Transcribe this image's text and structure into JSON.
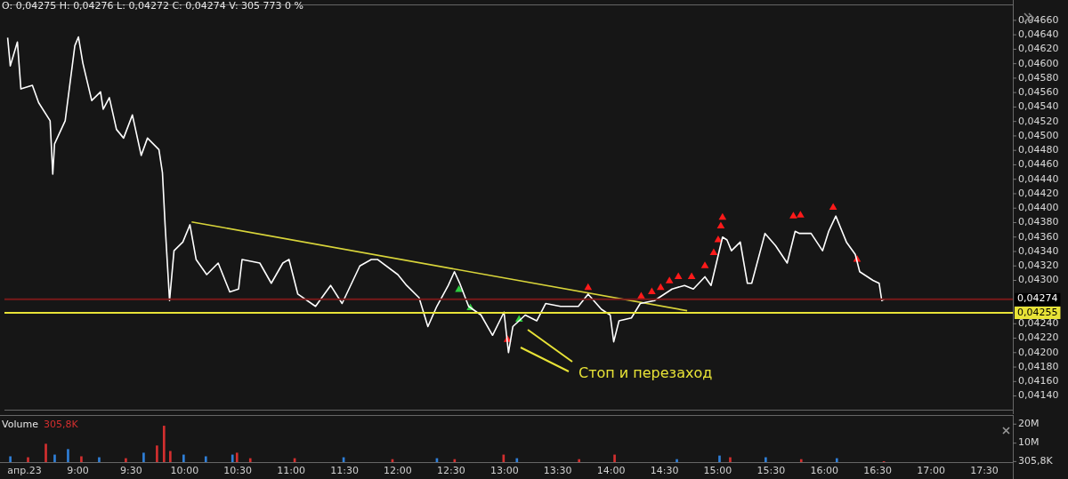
{
  "chart_data": [
    {
      "type": "line",
      "title": "O: 0,04275  H: 0,04276  L: 0,04272  C: 0,04274  V: 305 773  0 %",
      "xlim": [
        8.27,
        17.767
      ],
      "ylim": [
        0.04121,
        0.04682
      ],
      "yticks": [
        {
          "value": 0.0414,
          "label": "0,04140"
        },
        {
          "value": 0.0416,
          "label": "0,04160"
        },
        {
          "value": 0.0418,
          "label": "0,04180"
        },
        {
          "value": 0.042,
          "label": "0,04200"
        },
        {
          "value": 0.0422,
          "label": "0,04220"
        },
        {
          "value": 0.0424,
          "label": "0,04240"
        },
        {
          "value": 0.043,
          "label": "0,04300"
        },
        {
          "value": 0.0432,
          "label": "0,04320"
        },
        {
          "value": 0.0434,
          "label": "0,04340"
        },
        {
          "value": 0.0436,
          "label": "0,04360"
        },
        {
          "value": 0.0438,
          "label": "0,04380"
        },
        {
          "value": 0.044,
          "label": "0,04400"
        },
        {
          "value": 0.0442,
          "label": "0,04420"
        },
        {
          "value": 0.0444,
          "label": "0,04440"
        },
        {
          "value": 0.0446,
          "label": "0,04460"
        },
        {
          "value": 0.0448,
          "label": "0,04480"
        },
        {
          "value": 0.045,
          "label": "0,04500"
        },
        {
          "value": 0.0452,
          "label": "0,04520"
        },
        {
          "value": 0.0454,
          "label": "0,04540"
        },
        {
          "value": 0.0456,
          "label": "0,04560"
        },
        {
          "value": 0.0458,
          "label": "0,04580"
        },
        {
          "value": 0.046,
          "label": "0,04600"
        },
        {
          "value": 0.0462,
          "label": "0,04620"
        },
        {
          "value": 0.0464,
          "label": "0,04640"
        },
        {
          "value": 0.0466,
          "label": "0,04660"
        }
      ],
      "tick_labels": "y",
      "series": [
        {
          "type": "line",
          "color": "#ffffff",
          "marker": "none",
          "x": [
            8.3,
            8.325,
            8.392,
            8.425,
            8.533,
            8.592,
            8.7,
            8.725,
            8.742,
            8.842,
            8.933,
            8.967,
            9.008,
            9.092,
            9.175,
            9.2,
            9.258,
            9.325,
            9.392,
            9.475,
            9.558,
            9.617,
            9.725,
            9.758,
            9.783,
            9.825,
            9.867,
            9.95,
            10.017,
            10.075,
            10.175,
            10.283,
            10.392,
            10.475,
            10.508,
            10.675,
            10.783,
            10.892,
            10.95,
            11.033,
            11.2,
            11.342,
            11.45,
            11.617,
            11.725,
            11.783,
            11.975,
            12.058,
            12.175,
            12.258,
            12.342,
            12.45,
            12.508,
            12.558,
            12.642,
            12.758,
            12.867,
            12.975,
            13.017,
            13.058,
            13.175,
            13.283,
            13.367,
            13.508,
            13.675,
            13.767,
            13.892,
            13.975,
            14.008,
            14.058,
            14.175,
            14.258,
            14.392,
            14.558,
            14.675,
            14.758,
            14.867,
            14.925,
            14.975,
            15.033,
            15.075,
            15.117,
            15.2,
            15.267,
            15.308,
            15.433,
            15.533,
            15.642,
            15.717,
            15.758,
            15.867,
            15.975,
            16.033,
            16.1,
            16.2,
            16.283,
            16.325,
            16.45,
            16.508,
            16.533,
            16.558
          ],
          "values": [
            0.04636,
            0.04597,
            0.0463,
            0.04565,
            0.0457,
            0.04546,
            0.04521,
            0.04447,
            0.04489,
            0.04521,
            0.04625,
            0.04637,
            0.04601,
            0.04549,
            0.04561,
            0.04537,
            0.04553,
            0.04509,
            0.04497,
            0.04529,
            0.04473,
            0.04497,
            0.04481,
            0.04449,
            0.04377,
            0.04272,
            0.04341,
            0.04353,
            0.04377,
            0.04329,
            0.04308,
            0.04324,
            0.04284,
            0.04288,
            0.04329,
            0.04324,
            0.04296,
            0.04324,
            0.04329,
            0.04281,
            0.04264,
            0.04293,
            0.04268,
            0.0432,
            0.04329,
            0.04329,
            0.04308,
            0.04293,
            0.04276,
            0.04236,
            0.04264,
            0.04293,
            0.04312,
            0.04296,
            0.04264,
            0.04252,
            0.04224,
            0.04256,
            0.042,
            0.04236,
            0.04252,
            0.04244,
            0.04268,
            0.04264,
            0.04264,
            0.04281,
            0.0426,
            0.04252,
            0.04215,
            0.04244,
            0.04248,
            0.04268,
            0.04272,
            0.04288,
            0.04293,
            0.04288,
            0.04305,
            0.04293,
            0.04324,
            0.0436,
            0.04356,
            0.04341,
            0.04353,
            0.04296,
            0.04296,
            0.04365,
            0.04348,
            0.04324,
            0.04368,
            0.04365,
            0.04365,
            0.04341,
            0.04368,
            0.04389,
            0.04353,
            0.04336,
            0.04312,
            0.043,
            0.04296,
            0.04272,
            0.04274
          ]
        },
        {
          "type": "line",
          "color": "#d8d43a",
          "marker": "none",
          "x": [
            10.033,
            14.7
          ],
          "values": [
            0.04381,
            0.04258
          ]
        },
        {
          "type": "scatter",
          "color": "#2ecc40",
          "marker": "triangle",
          "x": [
            12.55,
            12.658,
            13.117
          ],
          "values": [
            0.04287,
            0.04262,
            0.04246
          ]
        },
        {
          "type": "scatter",
          "color": "#ff1a1a",
          "marker": "triangle",
          "x": [
            13.008,
            13.767,
            14.267,
            14.367,
            14.45,
            14.533,
            14.617,
            14.742,
            14.867,
            14.95,
            14.992,
            15.017,
            15.033,
            15.7,
            15.767,
            16.075,
            16.3
          ],
          "values": [
            0.04218,
            0.0429,
            0.04278,
            0.04284,
            0.0429,
            0.04299,
            0.04305,
            0.04305,
            0.0432,
            0.04338,
            0.04356,
            0.04375,
            0.04387,
            0.04389,
            0.0439,
            0.04401,
            0.04329
          ]
        }
      ],
      "ref_lines": [
        {
          "axis": "y",
          "value": 0.04255,
          "label": "0,04255",
          "color": "#e8e337"
        },
        {
          "axis": "y",
          "value": 0.04274,
          "label": "0,04274",
          "color": "#7a1a1a"
        }
      ],
      "annotations": [
        "Стоп и перезаход"
      ]
    },
    {
      "type": "bar",
      "title": "Volume",
      "subtitle": "305,8K",
      "xlim": [
        8.27,
        17.767
      ],
      "xticks": [
        {
          "value": 8.5,
          "label": "апр.23"
        },
        {
          "value": 9,
          "label": "9:00"
        },
        {
          "value": 9.5,
          "label": "9:30"
        },
        {
          "value": 10,
          "label": "10:00"
        },
        {
          "value": 10.5,
          "label": "10:30"
        },
        {
          "value": 11,
          "label": "11:00"
        },
        {
          "value": 11.5,
          "label": "11:30"
        },
        {
          "value": 12,
          "label": "12:00"
        },
        {
          "value": 12.5,
          "label": "12:30"
        },
        {
          "value": 13,
          "label": "13:00"
        },
        {
          "value": 13.5,
          "label": "13:30"
        },
        {
          "value": 14,
          "label": "14:00"
        },
        {
          "value": 14.5,
          "label": "14:30"
        },
        {
          "value": 15,
          "label": "15:00"
        },
        {
          "value": 15.5,
          "label": "15:30"
        },
        {
          "value": 16,
          "label": "16:00"
        },
        {
          "value": 16.5,
          "label": "16:30"
        },
        {
          "value": 17,
          "label": "17:00"
        },
        {
          "value": 17.5,
          "label": "17:30"
        }
      ],
      "ylim": [
        0,
        24800000
      ],
      "yticks": [
        {
          "value": 305800,
          "label": "305,8K"
        },
        {
          "value": 10000000,
          "label": "10M"
        },
        {
          "value": 20000000,
          "label": "20M"
        }
      ],
      "x": [
        8.367,
        8.533,
        8.7,
        8.783,
        8.908,
        9.033,
        9.2,
        9.45,
        9.617,
        9.742,
        9.808,
        9.867,
        9.992,
        10.2,
        10.45,
        10.492,
        10.617,
        11.033,
        11.492,
        11.95,
        12.367,
        12.533,
        12.992,
        13.117,
        13.7,
        14.033,
        14.617,
        15.017,
        15.117,
        15.45,
        15.783,
        16.117,
        16.558
      ],
      "values": [
        2900000,
        2400000,
        9500000,
        3800000,
        6700000,
        2900000,
        2400000,
        1900000,
        4800000,
        8600000,
        19000000,
        5700000,
        3800000,
        2900000,
        3800000,
        4800000,
        1900000,
        1900000,
        2400000,
        1400000,
        1900000,
        1400000,
        3800000,
        1900000,
        1400000,
        3800000,
        1400000,
        3300000,
        2400000,
        2400000,
        1400000,
        1900000,
        305800
      ],
      "colors": [
        "#2f7fd8",
        "#d32f2f",
        "#d32f2f",
        "#2f7fd8",
        "#2f7fd8",
        "#d32f2f",
        "#2f7fd8",
        "#d32f2f",
        "#2f7fd8",
        "#d32f2f",
        "#d32f2f",
        "#d32f2f",
        "#2f7fd8",
        "#2f7fd8",
        "#2f7fd8",
        "#d32f2f",
        "#d32f2f",
        "#d32f2f",
        "#2f7fd8",
        "#d32f2f",
        "#2f7fd8",
        "#d32f2f",
        "#d32f2f",
        "#2f7fd8",
        "#d32f2f",
        "#d32f2f",
        "#2f7fd8",
        "#2f7fd8",
        "#d32f2f",
        "#2f7fd8",
        "#d32f2f",
        "#2f7fd8",
        "#d32f2f"
      ]
    }
  ]
}
